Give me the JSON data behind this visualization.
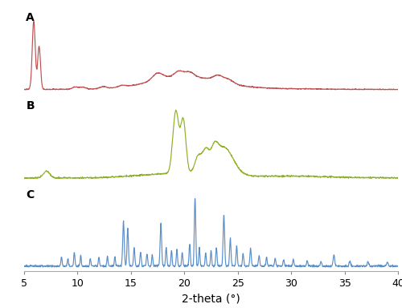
{
  "x_min": 5,
  "x_max": 40,
  "xlabel": "2-theta (°)",
  "label_A": "A",
  "label_B": "B",
  "label_C": "C",
  "color_A": "#c05050",
  "color_B": "#8faf28",
  "color_C": "#5b8fc9",
  "xticks": [
    5,
    10,
    15,
    20,
    25,
    30,
    35,
    40
  ],
  "background": "#ffffff",
  "linewidth": 0.85
}
